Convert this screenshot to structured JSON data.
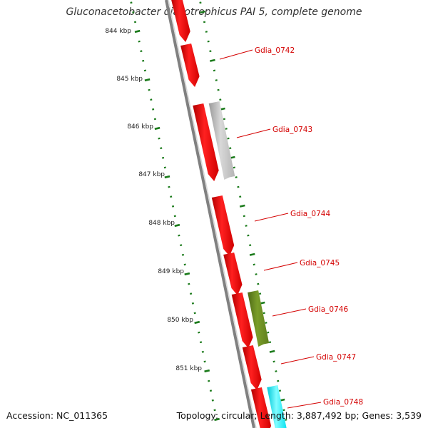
{
  "title": "Gluconacetobacter diazotrophicus PAI 5, complete genome",
  "footer": {
    "accession": "Accession: NC_011365",
    "stats": "Topology: circular; Length: 3,887,492 bp; Genes: 3,539"
  },
  "scale_labels": [
    "844 kbp",
    "845 kbp",
    "846 kbp",
    "847 kbp",
    "848 kbp",
    "849 kbp",
    "850 kbp",
    "851 kbp"
  ],
  "gene_labels": [
    "Gdia_0742",
    "Gdia_0743",
    "Gdia_0744",
    "Gdia_0745",
    "Gdia_0746",
    "Gdia_0747",
    "Gdia_0748"
  ],
  "colors": {
    "cds": "#ff0000",
    "grey_feature": "#c0c0c0",
    "olive_feature": "#6b8e23",
    "cyan_feature": "#00ffff",
    "backbone": "#7f7f7f",
    "ticks": "#1a7a1a",
    "label": "#d40000"
  }
}
